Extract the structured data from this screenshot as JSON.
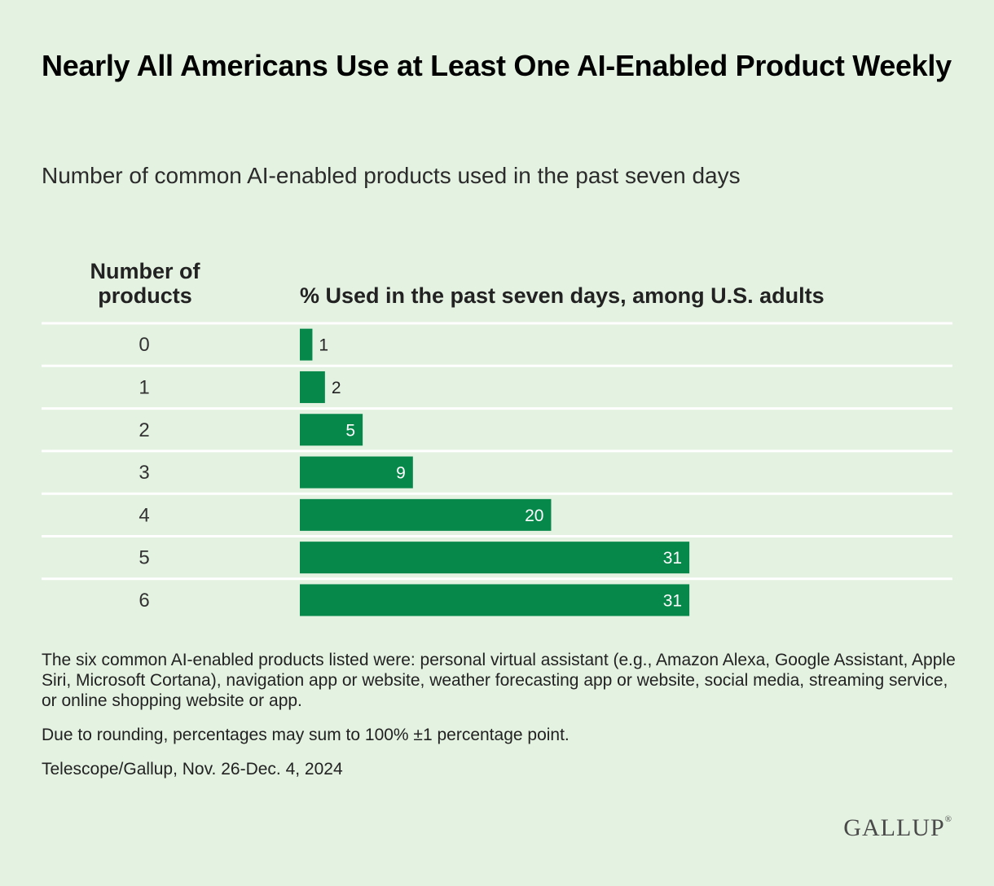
{
  "header": {
    "title": "Nearly All Americans Use at Least One AI-Enabled Product Weekly",
    "subtitle": "Number of common AI-enabled products used in the past seven days"
  },
  "chart_data": {
    "type": "bar",
    "orientation": "horizontal",
    "row_header": "Number of products",
    "value_header": "% Used in the past seven days, among U.S. adults",
    "categories": [
      "0",
      "1",
      "2",
      "3",
      "4",
      "5",
      "6"
    ],
    "values": [
      1,
      2,
      5,
      9,
      20,
      31,
      31
    ],
    "xlim": [
      0,
      52
    ],
    "grid": false,
    "bar_color": "#06884a"
  },
  "footnotes": {
    "products_note": "The six common AI-enabled products listed were: personal virtual assistant (e.g., Amazon Alexa, Google Assistant, Apple Siri, Microsoft Cortana), navigation app or website, weather forecasting app or website, social media, streaming service, or online shopping website or app.",
    "rounding_note": "Due to rounding, percentages may sum to 100% ±1 percentage point.",
    "source": "Telescope/Gallup, Nov. 26-Dec. 4, 2024"
  },
  "brand": {
    "name": "GALLUP",
    "registered": "®"
  },
  "colors": {
    "background": "#e4f2e1",
    "bar": "#06884a",
    "separator": "#ffffff"
  }
}
